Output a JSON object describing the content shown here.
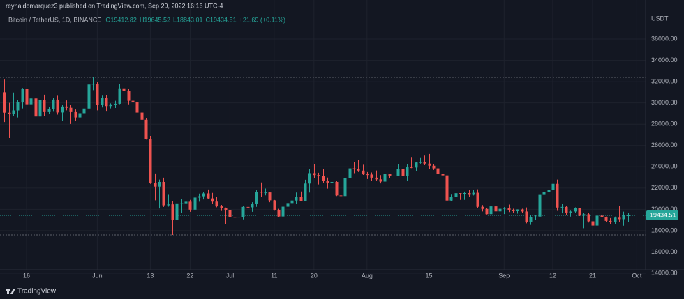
{
  "chart_data": {
    "type": "candlestick",
    "attribution": "reynaldomarquez3 published on TradingView.com, Sep 29, 2022 16:16 UTC-4",
    "symbol": "Bitcoin / TetherUS, 1D, BINANCE",
    "legend_text": [
      "O19412.82",
      "H19645.52",
      "L18843.01",
      "C19434.51",
      "+21.69 (+0.11%)"
    ],
    "currency": "USDT",
    "footer": "TradingView",
    "up_color": "#26a69a",
    "down_color": "#ef5350",
    "grid": true,
    "x": [
      "05-11",
      "05-12",
      "05-13",
      "05-14",
      "05-15",
      "05-16",
      "05-17",
      "05-18",
      "05-19",
      "05-20",
      "05-21",
      "05-22",
      "05-23",
      "05-24",
      "05-25",
      "05-26",
      "05-27",
      "05-28",
      "05-29",
      "05-30",
      "05-31",
      "06-01",
      "06-02",
      "06-03",
      "06-04",
      "06-05",
      "06-06",
      "06-07",
      "06-08",
      "06-09",
      "06-10",
      "06-11",
      "06-12",
      "06-13",
      "06-14",
      "06-15",
      "06-16",
      "06-17",
      "06-18",
      "06-19",
      "06-20",
      "06-21",
      "06-22",
      "06-23",
      "06-24",
      "06-25",
      "06-26",
      "06-27",
      "06-28",
      "06-29",
      "06-30",
      "07-01",
      "07-02",
      "07-03",
      "07-04",
      "07-05",
      "07-06",
      "07-07",
      "07-08",
      "07-09",
      "07-10",
      "07-11",
      "07-12",
      "07-13",
      "07-14",
      "07-15",
      "07-16",
      "07-17",
      "07-18",
      "07-19",
      "07-20",
      "07-21",
      "07-22",
      "07-23",
      "07-24",
      "07-25",
      "07-26",
      "07-27",
      "07-28",
      "07-29",
      "07-30",
      "07-31",
      "08-01",
      "08-02",
      "08-03",
      "08-04",
      "08-05",
      "08-06",
      "08-07",
      "08-08",
      "08-09",
      "08-10",
      "08-11",
      "08-12",
      "08-13",
      "08-14",
      "08-15",
      "08-16",
      "08-17",
      "08-18",
      "08-19",
      "08-20",
      "08-21",
      "08-22",
      "08-23",
      "08-24",
      "08-25",
      "08-26",
      "08-27",
      "08-28",
      "08-29",
      "08-30",
      "08-31",
      "09-01",
      "09-02",
      "09-03",
      "09-04",
      "09-05",
      "09-06",
      "09-07",
      "09-08",
      "09-09",
      "09-10",
      "09-11",
      "09-12",
      "09-13",
      "09-14",
      "09-15",
      "09-16",
      "09-17",
      "09-18",
      "09-19",
      "09-20",
      "09-21",
      "09-22",
      "09-23",
      "09-24",
      "09-25",
      "09-26",
      "09-27",
      "09-28",
      "09-29"
    ],
    "open": [
      31000,
      29080,
      28990,
      29290,
      30080,
      31330,
      29870,
      30420,
      28720,
      30300,
      29200,
      29430,
      30310,
      29100,
      29660,
      29540,
      29200,
      28630,
      29030,
      29470,
      31730,
      31800,
      29800,
      30460,
      29700,
      29860,
      29920,
      31370,
      31130,
      30200,
      30110,
      29090,
      28420,
      26590,
      22490,
      22140,
      22580,
      20380,
      20470,
      19020,
      20560,
      20570,
      20720,
      19970,
      21110,
      21230,
      21500,
      21030,
      20730,
      20280,
      20100,
      19940,
      19290,
      19250,
      19300,
      20230,
      20190,
      20550,
      21640,
      21590,
      21590,
      20850,
      19960,
      19330,
      20250,
      20590,
      20830,
      21200,
      20790,
      22430,
      23400,
      23220,
      23160,
      22690,
      22450,
      22580,
      21310,
      21250,
      22950,
      23850,
      23780,
      23640,
      23290,
      23270,
      22980,
      22820,
      22610,
      23310,
      23170,
      23170,
      23810,
      23150,
      23950,
      23930,
      24400,
      24440,
      24300,
      24100,
      23850,
      23340,
      23190,
      20830,
      21140,
      21520,
      21400,
      21530,
      21370,
      21560,
      20240,
      20040,
      19550,
      20280,
      19810,
      20050,
      20130,
      19950,
      19830,
      19990,
      19800,
      18790,
      19290,
      19320,
      21360,
      21650,
      21830,
      22400,
      20170,
      20230,
      19700,
      19800,
      20110,
      19420,
      19540,
      18880,
      18480,
      19410,
      19290,
      18920,
      18800,
      19220,
      19080,
      19412.82
    ],
    "high": [
      32200,
      30000,
      30980,
      30300,
      31400,
      31330,
      30750,
      30670,
      30540,
      30770,
      29620,
      30460,
      30670,
      29840,
      30230,
      29850,
      29380,
      29250,
      29600,
      32220,
      32400,
      31980,
      30680,
      30700,
      29950,
      30200,
      31760,
      31550,
      31330,
      30700,
      30380,
      29460,
      28560,
      26900,
      23370,
      22800,
      22980,
      21370,
      20800,
      20800,
      21000,
      21720,
      20890,
      21220,
      21480,
      21610,
      21870,
      21550,
      21200,
      20420,
      20170,
      20870,
      19430,
      19650,
      20350,
      20750,
      20670,
      21840,
      22530,
      21960,
      21620,
      20880,
      20050,
      20250,
      20880,
      21200,
      21580,
      21680,
      22780,
      23800,
      24280,
      23440,
      23760,
      22990,
      23000,
      22660,
      21350,
      23110,
      24200,
      24440,
      24670,
      24190,
      23500,
      23460,
      23650,
      23220,
      23470,
      23350,
      23400,
      24240,
      23930,
      24230,
      24920,
      24460,
      24890,
      25050,
      25210,
      24250,
      24450,
      23590,
      23210,
      21380,
      21700,
      21520,
      21670,
      21850,
      21820,
      21880,
      20400,
      20150,
      20400,
      20580,
      20490,
      20210,
      20450,
      20060,
      20000,
      20060,
      20180,
      19460,
      19460,
      21450,
      21800,
      21860,
      22490,
      22800,
      20550,
      20330,
      19880,
      20190,
      20110,
      19690,
      19640,
      19960,
      19500,
      19500,
      19320,
      19180,
      19320,
      20350,
      19790,
      19645.52
    ],
    "low": [
      28200,
      26700,
      28750,
      28630,
      29480,
      29100,
      29450,
      28650,
      28680,
      28730,
      28950,
      29230,
      28900,
      28300,
      29300,
      28020,
      28280,
      28450,
      28820,
      29300,
      31200,
      29300,
      29570,
      29250,
      29480,
      29520,
      29880,
      29220,
      29860,
      29950,
      28850,
      28100,
      26560,
      22400,
      20850,
      20080,
      20230,
      20250,
      17600,
      17960,
      19640,
      20350,
      19770,
      19900,
      20720,
      20930,
      20990,
      20510,
      20200,
      19850,
      18630,
      19000,
      18980,
      18780,
      19060,
      19300,
      19770,
      20240,
      21190,
      21320,
      20670,
      19880,
      19240,
      18910,
      19620,
      20390,
      20480,
      20770,
      20760,
      21580,
      22910,
      22340,
      22500,
      21950,
      22250,
      21250,
      20700,
      21040,
      22600,
      23400,
      23500,
      23230,
      22850,
      22660,
      22680,
      22440,
      22590,
      22930,
      22840,
      23160,
      22860,
      22660,
      23870,
      23590,
      24290,
      24150,
      23770,
      23700,
      23190,
      23110,
      20780,
      20760,
      21060,
      20890,
      20890,
      21150,
      21310,
      20110,
      19800,
      19520,
      19540,
      19530,
      19800,
      19560,
      19750,
      19650,
      19600,
      19640,
      18690,
      18540,
      19010,
      19300,
      21110,
      21350,
      21570,
      19860,
      19620,
      19500,
      19320,
      19700,
      19370,
      18230,
      18760,
      18130,
      18360,
      18550,
      18810,
      18630,
      18650,
      18820,
      18470,
      18843.01
    ],
    "close": [
      29080,
      28990,
      29290,
      30080,
      31330,
      29870,
      30420,
      28720,
      30300,
      29200,
      29430,
      30310,
      29100,
      29660,
      29540,
      29200,
      28630,
      29030,
      29470,
      31730,
      31800,
      29800,
      30460,
      29700,
      29860,
      29920,
      31370,
      31130,
      30200,
      30110,
      29090,
      28420,
      26590,
      22490,
      22140,
      22580,
      20380,
      20470,
      19020,
      20560,
      20570,
      20720,
      19970,
      21110,
      21230,
      21500,
      21030,
      20730,
      20280,
      20100,
      19940,
      19290,
      19250,
      19300,
      20230,
      20190,
      20550,
      21640,
      21590,
      21590,
      20850,
      19960,
      19330,
      20250,
      20590,
      20830,
      21200,
      20790,
      22430,
      23400,
      23220,
      23160,
      22690,
      22450,
      22580,
      21310,
      21250,
      22950,
      23850,
      23780,
      23640,
      23290,
      23270,
      22980,
      22820,
      22610,
      23310,
      23170,
      23170,
      23810,
      23150,
      23950,
      23930,
      24400,
      24440,
      24300,
      24100,
      23850,
      23340,
      23190,
      20830,
      21140,
      21520,
      21400,
      21530,
      21370,
      21560,
      20240,
      20040,
      19550,
      20280,
      19810,
      20050,
      20130,
      19950,
      19830,
      19990,
      19800,
      18790,
      19290,
      19320,
      21360,
      21650,
      21830,
      22400,
      20170,
      20230,
      19700,
      19800,
      20110,
      19420,
      19540,
      18880,
      18480,
      19410,
      19290,
      18920,
      18800,
      19220,
      19080,
      19412.82,
      19434.51
    ],
    "xlim": [
      "05-10",
      "10-03"
    ],
    "xticks": [
      {
        "value": "05-16",
        "label": "16"
      },
      {
        "value": "06-01",
        "label": "Jun"
      },
      {
        "value": "06-13",
        "label": "13"
      },
      {
        "value": "06-22",
        "label": "22"
      },
      {
        "value": "07-01",
        "label": "Jul"
      },
      {
        "value": "07-11",
        "label": "11"
      },
      {
        "value": "07-20",
        "label": "20"
      },
      {
        "value": "08-01",
        "label": "Aug"
      },
      {
        "value": "08-15",
        "label": "15"
      },
      {
        "value": "09-01",
        "label": "Sep"
      },
      {
        "value": "09-12",
        "label": "12"
      },
      {
        "value": "09-21",
        "label": "21"
      },
      {
        "value": "10-01",
        "label": "Oct"
      }
    ],
    "ylim": [
      14000,
      39670
    ],
    "yticks": [
      {
        "value": 14000,
        "label": "14000.00"
      },
      {
        "value": 16000,
        "label": "16000.00"
      },
      {
        "value": 18000,
        "label": "18000.00"
      },
      {
        "value": 20000,
        "label": "20000.00"
      },
      {
        "value": 22000,
        "label": "22000.00"
      },
      {
        "value": 24000,
        "label": "24000.00"
      },
      {
        "value": 26000,
        "label": "26000.00"
      },
      {
        "value": 28000,
        "label": "28000.00"
      },
      {
        "value": 30000,
        "label": "30000.00"
      },
      {
        "value": 32000,
        "label": "32000.00"
      },
      {
        "value": 34000,
        "label": "34000.00"
      },
      {
        "value": 36000,
        "label": "36000.00"
      }
    ]
  }
}
